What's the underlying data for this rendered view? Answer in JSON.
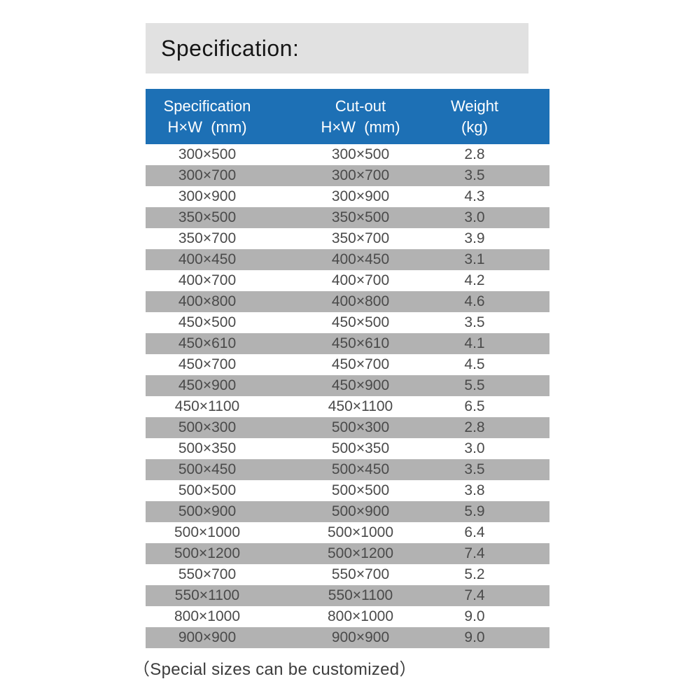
{
  "title": "Specification:",
  "footer_note": "（Special sizes can be customized）",
  "colors": {
    "header_bg": "#1d70b5",
    "header_text": "#ffffff",
    "title_band_bg": "#e1e1e1",
    "row_alt_bg": "#b2b2b2",
    "row_text": "#4a4a4a"
  },
  "table": {
    "headers": [
      {
        "line1": "Specification",
        "line2": "H×W  (mm)"
      },
      {
        "line1": "Cut-out",
        "line2": "H×W  (mm)"
      },
      {
        "line1": "Weight",
        "line2": "(kg)"
      }
    ],
    "rows": [
      [
        "300×500",
        "300×500",
        "2.8"
      ],
      [
        "300×700",
        "300×700",
        "3.5"
      ],
      [
        "300×900",
        "300×900",
        "4.3"
      ],
      [
        "350×500",
        "350×500",
        "3.0"
      ],
      [
        "350×700",
        "350×700",
        "3.9"
      ],
      [
        "400×450",
        "400×450",
        "3.1"
      ],
      [
        "400×700",
        "400×700",
        "4.2"
      ],
      [
        "400×800",
        "400×800",
        "4.6"
      ],
      [
        "450×500",
        "450×500",
        "3.5"
      ],
      [
        "450×610",
        "450×610",
        "4.1"
      ],
      [
        "450×700",
        "450×700",
        "4.5"
      ],
      [
        "450×900",
        "450×900",
        "5.5"
      ],
      [
        "450×1100",
        "450×1100",
        "6.5"
      ],
      [
        "500×300",
        "500×300",
        "2.8"
      ],
      [
        "500×350",
        "500×350",
        "3.0"
      ],
      [
        "500×450",
        "500×450",
        "3.5"
      ],
      [
        "500×500",
        "500×500",
        "3.8"
      ],
      [
        "500×900",
        "500×900",
        "5.9"
      ],
      [
        "500×1000",
        "500×1000",
        "6.4"
      ],
      [
        "500×1200",
        "500×1200",
        "7.4"
      ],
      [
        "550×700",
        "550×700",
        "5.2"
      ],
      [
        "550×1100",
        "550×1100",
        "7.4"
      ],
      [
        "800×1000",
        "800×1000",
        "9.0"
      ],
      [
        "900×900",
        "900×900",
        "9.0"
      ]
    ]
  }
}
